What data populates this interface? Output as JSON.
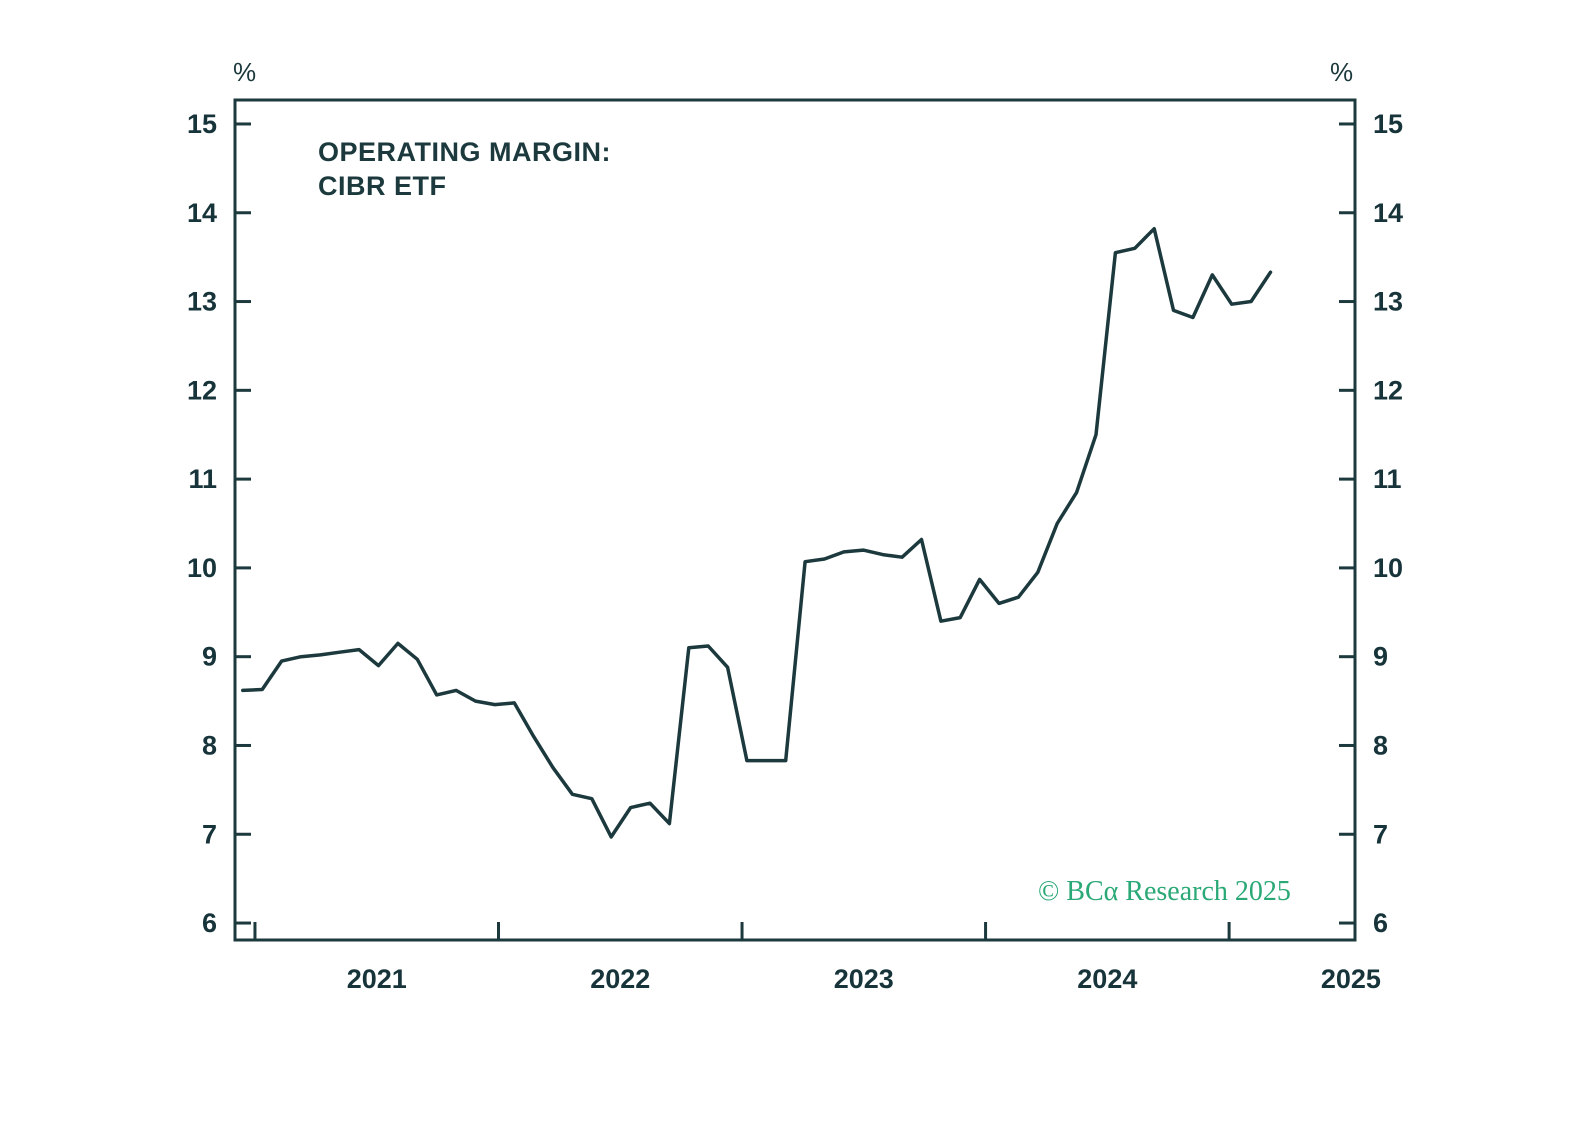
{
  "chart": {
    "title_line1": "OPERATING MARGIN:",
    "title_line2": "CIBR ETF",
    "y_unit_left": "%",
    "y_unit_right": "%",
    "copyright": "© BCα Research 2025"
  },
  "colors": {
    "background": "#ffffff",
    "axis": "#1c393d",
    "line": "#1c393d",
    "tick_text": "#17343a",
    "copyright_green": "#2aa876"
  },
  "chart_data": {
    "type": "line",
    "title": "OPERATING MARGIN: CIBR ETF",
    "series_name": "Operating margin, CIBR ETF (%)",
    "x_start": 2020.95,
    "x_end": 2025.17,
    "frequency": "monthly (approx.)",
    "values": [
      8.62,
      8.63,
      8.95,
      9.0,
      9.02,
      9.05,
      9.08,
      8.9,
      9.15,
      8.97,
      8.57,
      8.62,
      8.5,
      8.46,
      8.48,
      8.1,
      7.75,
      7.45,
      7.4,
      6.97,
      7.3,
      7.35,
      7.12,
      9.1,
      9.12,
      8.88,
      7.83,
      7.83,
      7.83,
      10.07,
      10.1,
      10.18,
      10.2,
      10.15,
      10.12,
      10.32,
      9.4,
      9.44,
      9.87,
      9.6,
      9.67,
      9.95,
      10.5,
      10.85,
      11.5,
      13.55,
      13.6,
      13.82,
      12.9,
      12.82,
      13.3,
      12.97,
      13.0,
      13.33
    ],
    "y_ticks": [
      6,
      7,
      8,
      9,
      10,
      11,
      12,
      13,
      14,
      15
    ],
    "x_ticks": [
      2021,
      2022,
      2023,
      2024,
      2025
    ],
    "x_tick_labels": [
      "2021",
      "2022",
      "2023",
      "2024",
      "2025"
    ],
    "xlim": [
      2020.918,
      2025.517
    ],
    "ylim": [
      6,
      15
    ],
    "grid": false,
    "legend": "none",
    "xlabel": "",
    "ylabel": "%"
  }
}
